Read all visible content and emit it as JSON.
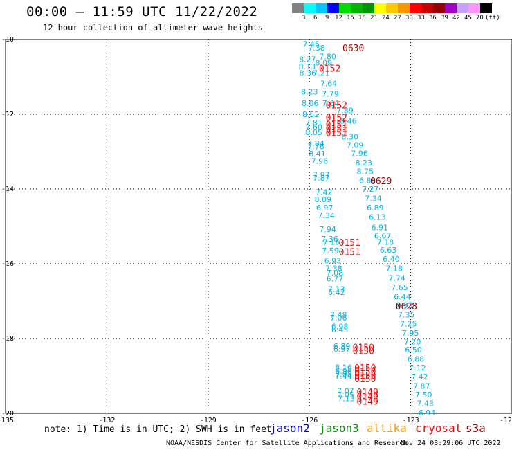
{
  "header": {
    "title": "00:00 — 11:59 UTC 11/22/2022",
    "subtitle": "12 hour collection of altimeter wave heights"
  },
  "colorbar": {
    "colors": [
      "#808080",
      "#00ffff",
      "#00c8ff",
      "#0000ff",
      "#00dc00",
      "#00b400",
      "#009600",
      "#ffff00",
      "#ffc800",
      "#ff9600",
      "#ff0000",
      "#c80000",
      "#960000",
      "#a000c8",
      "#c8a0ff",
      "#ff96ff",
      "#000000"
    ],
    "labels": [
      "3",
      "6",
      "9",
      "12",
      "15",
      "18",
      "21",
      "24",
      "27",
      "30",
      "33",
      "36",
      "39",
      "42",
      "45",
      "70"
    ],
    "unit": "(ft)"
  },
  "axes": {
    "x_ticks": [
      "-135",
      "-132",
      "-129",
      "-126",
      "-123",
      "-12"
    ],
    "y_ticks": [
      "-10",
      "-12",
      "-14",
      "-16",
      "-18",
      "-20"
    ]
  },
  "observations": [
    {
      "text": "7.45",
      "lon": -126.2,
      "lat": -10.12,
      "color": "#00b4e6"
    },
    {
      "text": "7.38",
      "lon": -126.04,
      "lat": -10.22,
      "color": "#00b4e6"
    },
    {
      "text": "7.80",
      "lon": -125.71,
      "lat": -10.45,
      "color": "#00b4e6"
    },
    {
      "text": "8.27",
      "lon": -126.31,
      "lat": -10.53,
      "color": "#00b4e6"
    },
    {
      "text": "8.09",
      "lon": -125.83,
      "lat": -10.62,
      "color": "#00b4e6"
    },
    {
      "text": "8.13",
      "lon": -126.32,
      "lat": -10.72,
      "color": "#00b4e6"
    },
    {
      "text": "7.21",
      "lon": -125.9,
      "lat": -10.9,
      "color": "#00b4e6"
    },
    {
      "text": "8.36",
      "lon": -126.3,
      "lat": -10.9,
      "color": "#00b4e6"
    },
    {
      "text": "7.64",
      "lon": -125.68,
      "lat": -11.18,
      "color": "#00b4e6"
    },
    {
      "text": "8.23",
      "lon": -126.25,
      "lat": -11.4,
      "color": "#00b4e6"
    },
    {
      "text": "7.79",
      "lon": -125.63,
      "lat": -11.45,
      "color": "#00b4e6"
    },
    {
      "text": "8.06",
      "lon": -126.23,
      "lat": -11.7,
      "color": "#00b4e6"
    },
    {
      "text": "7.64",
      "lon": -125.62,
      "lat": -11.7,
      "color": "#00b4e6"
    },
    {
      "text": "7.89",
      "lon": -125.2,
      "lat": -11.9,
      "color": "#00b4e6"
    },
    {
      "text": "8.52",
      "lon": -126.21,
      "lat": -12.0,
      "color": "#00b4e6"
    },
    {
      "text": "7.81",
      "lon": -126.12,
      "lat": -12.22,
      "color": "#00b4e6"
    },
    {
      "text": "8.46",
      "lon": -125.1,
      "lat": -12.18,
      "color": "#00b4e6"
    },
    {
      "text": "7.60",
      "lon": -126.12,
      "lat": -12.34,
      "color": "#00b4e6"
    },
    {
      "text": "8.05",
      "lon": -126.12,
      "lat": -12.48,
      "color": "#00b4e6"
    },
    {
      "text": "8.30",
      "lon": -125.05,
      "lat": -12.6,
      "color": "#00b4e6"
    },
    {
      "text": "7.84",
      "lon": -126.06,
      "lat": -12.78,
      "color": "#00b4e6"
    },
    {
      "text": "7.09",
      "lon": -124.9,
      "lat": -12.82,
      "color": "#00b4e6"
    },
    {
      "text": "7.76",
      "lon": -126.06,
      "lat": -12.86,
      "color": "#00b4e6"
    },
    {
      "text": "7.96",
      "lon": -124.77,
      "lat": -13.05,
      "color": "#00b4e6"
    },
    {
      "text": "8.41",
      "lon": -126.02,
      "lat": -13.06,
      "color": "#00b4e6"
    },
    {
      "text": "7.96",
      "lon": -125.95,
      "lat": -13.25,
      "color": "#00b4e6"
    },
    {
      "text": "8.23",
      "lon": -124.64,
      "lat": -13.3,
      "color": "#00b4e6"
    },
    {
      "text": "8.75",
      "lon": -124.6,
      "lat": -13.53,
      "color": "#00b4e6"
    },
    {
      "text": "7.97",
      "lon": -125.9,
      "lat": -13.62,
      "color": "#00b4e6"
    },
    {
      "text": "7.87",
      "lon": -125.9,
      "lat": -13.7,
      "color": "#00b4e6"
    },
    {
      "text": "6.88",
      "lon": -124.53,
      "lat": -13.77,
      "color": "#00b4e6"
    },
    {
      "text": "7.27",
      "lon": -124.45,
      "lat": -14.0,
      "color": "#00b4e6"
    },
    {
      "text": "7.42",
      "lon": -125.82,
      "lat": -14.08,
      "color": "#00b4e6"
    },
    {
      "text": "7.34",
      "lon": -124.36,
      "lat": -14.25,
      "color": "#00b4e6"
    },
    {
      "text": "8.09",
      "lon": -125.85,
      "lat": -14.28,
      "color": "#00b4e6"
    },
    {
      "text": "6.97",
      "lon": -125.8,
      "lat": -14.5,
      "color": "#00b4e6"
    },
    {
      "text": "6.89",
      "lon": -124.3,
      "lat": -14.5,
      "color": "#00b4e6"
    },
    {
      "text": "7.34",
      "lon": -125.75,
      "lat": -14.7,
      "color": "#00b4e6"
    },
    {
      "text": "6.13",
      "lon": -124.24,
      "lat": -14.75,
      "color": "#00b4e6"
    },
    {
      "text": "6.91",
      "lon": -124.17,
      "lat": -15.03,
      "color": "#00b4e6"
    },
    {
      "text": "7.94",
      "lon": -125.71,
      "lat": -15.07,
      "color": "#00b4e6"
    },
    {
      "text": "6.67",
      "lon": -124.08,
      "lat": -15.25,
      "color": "#00b4e6"
    },
    {
      "text": "7.36",
      "lon": -125.65,
      "lat": -15.33,
      "color": "#00b4e6"
    },
    {
      "text": "7.16",
      "lon": -125.6,
      "lat": -15.42,
      "color": "#00b4e6"
    },
    {
      "text": "7.18",
      "lon": -124.0,
      "lat": -15.42,
      "color": "#00b4e6"
    },
    {
      "text": "7.59",
      "lon": -125.63,
      "lat": -15.65,
      "color": "#00b4e6"
    },
    {
      "text": "6.63",
      "lon": -123.92,
      "lat": -15.63,
      "color": "#00b4e6"
    },
    {
      "text": "6.40",
      "lon": -123.83,
      "lat": -15.87,
      "color": "#00b4e6"
    },
    {
      "text": "6.93",
      "lon": -125.56,
      "lat": -15.92,
      "color": "#00b4e6"
    },
    {
      "text": "7.18",
      "lon": -123.74,
      "lat": -16.12,
      "color": "#00b4e6"
    },
    {
      "text": "7.38",
      "lon": -125.53,
      "lat": -16.12,
      "color": "#00b4e6"
    },
    {
      "text": "7.08",
      "lon": -125.5,
      "lat": -16.24,
      "color": "#00b4e6"
    },
    {
      "text": "6.77",
      "lon": -125.5,
      "lat": -16.4,
      "color": "#00b4e6"
    },
    {
      "text": "7.74",
      "lon": -123.66,
      "lat": -16.38,
      "color": "#00b4e6"
    },
    {
      "text": "7.65",
      "lon": -123.58,
      "lat": -16.63,
      "color": "#00b4e6"
    },
    {
      "text": "7.13",
      "lon": -125.45,
      "lat": -16.68,
      "color": "#00b4e6"
    },
    {
      "text": "6.42",
      "lon": -125.45,
      "lat": -16.76,
      "color": "#00b4e6"
    },
    {
      "text": "6.44",
      "lon": -123.5,
      "lat": -16.88,
      "color": "#00b4e6"
    },
    {
      "text": "6.92",
      "lon": -123.44,
      "lat": -17.1,
      "color": "#00b4e6"
    },
    {
      "text": "7.24",
      "lon": -123.42,
      "lat": -17.15,
      "color": "#00b4e6"
    },
    {
      "text": "7.35",
      "lon": -123.38,
      "lat": -17.36,
      "color": "#00b4e6"
    },
    {
      "text": "7.48",
      "lon": -125.39,
      "lat": -17.36,
      "color": "#00b4e6"
    },
    {
      "text": "7.06",
      "lon": -125.39,
      "lat": -17.44,
      "color": "#00b4e6"
    },
    {
      "text": "7.25",
      "lon": -123.32,
      "lat": -17.6,
      "color": "#00b4e6"
    },
    {
      "text": "6.98",
      "lon": -125.35,
      "lat": -17.68,
      "color": "#00b4e6"
    },
    {
      "text": "6.45",
      "lon": -125.35,
      "lat": -17.76,
      "color": "#00b4e6"
    },
    {
      "text": "7.95",
      "lon": -123.26,
      "lat": -17.85,
      "color": "#00b4e6"
    },
    {
      "text": "7.20",
      "lon": -123.2,
      "lat": -18.08,
      "color": "#00b4e6"
    },
    {
      "text": "6.89",
      "lon": -125.29,
      "lat": -18.2,
      "color": "#00b4e6"
    },
    {
      "text": "6.97",
      "lon": -125.29,
      "lat": -18.28,
      "color": "#00b4e6"
    },
    {
      "text": "6.50",
      "lon": -123.17,
      "lat": -18.3,
      "color": "#00b4e6"
    },
    {
      "text": "6.88",
      "lon": -123.1,
      "lat": -18.55,
      "color": "#00b4e6"
    },
    {
      "text": "8.16",
      "lon": -125.24,
      "lat": -18.77,
      "color": "#00b4e6"
    },
    {
      "text": "7.12",
      "lon": -123.05,
      "lat": -18.78,
      "color": "#00b4e6"
    },
    {
      "text": "6.96",
      "lon": -125.24,
      "lat": -18.87,
      "color": "#00b4e6"
    },
    {
      "text": "7.08",
      "lon": -125.24,
      "lat": -18.94,
      "color": "#00b4e6"
    },
    {
      "text": "7.44",
      "lon": -125.24,
      "lat": -19.0,
      "color": "#00b4e6"
    },
    {
      "text": "7.42",
      "lon": -122.99,
      "lat": -19.02,
      "color": "#00b4e6"
    },
    {
      "text": "7.87",
      "lon": -122.93,
      "lat": -19.27,
      "color": "#00b4e6"
    },
    {
      "text": "7.07",
      "lon": -125.18,
      "lat": -19.4,
      "color": "#00b4e6"
    },
    {
      "text": "7.50",
      "lon": -122.87,
      "lat": -19.5,
      "color": "#00b4e6"
    },
    {
      "text": "7.05",
      "lon": -125.18,
      "lat": -19.5,
      "color": "#00b4e6"
    },
    {
      "text": "7.13",
      "lon": -125.16,
      "lat": -19.6,
      "color": "#00b4e6"
    },
    {
      "text": "7.43",
      "lon": -122.82,
      "lat": -19.73,
      "color": "#00b4e6"
    },
    {
      "text": "6.94",
      "lon": -122.77,
      "lat": -19.98,
      "color": "#00b4e6"
    }
  ],
  "times": [
    {
      "text": "0630",
      "lon": -125.02,
      "lat": -10.22,
      "color": "#960000"
    },
    {
      "text": "0152",
      "lon": -125.72,
      "lat": -10.77,
      "color": "#ff0000"
    },
    {
      "text": "0152",
      "lon": -125.52,
      "lat": -11.75,
      "color": "#ff0000"
    },
    {
      "text": "0152",
      "lon": -125.52,
      "lat": -12.08,
      "color": "#ff0000"
    },
    {
      "text": "0151",
      "lon": -125.52,
      "lat": -12.27,
      "color": "#ff0000"
    },
    {
      "text": "0151",
      "lon": -125.52,
      "lat": -12.38,
      "color": "#ff0000"
    },
    {
      "text": "0151",
      "lon": -125.52,
      "lat": -12.49,
      "color": "#ff0000"
    },
    {
      "text": "0629",
      "lon": -124.2,
      "lat": -13.78,
      "color": "#960000"
    },
    {
      "text": "0151",
      "lon": -125.13,
      "lat": -15.43,
      "color": "#ff0000"
    },
    {
      "text": "0151",
      "lon": -125.13,
      "lat": -15.68,
      "color": "#ff0000"
    },
    {
      "text": "0628",
      "lon": -123.45,
      "lat": -17.13,
      "color": "#960000"
    },
    {
      "text": "0150",
      "lon": -124.72,
      "lat": -18.23,
      "color": "#ff0000"
    },
    {
      "text": "0150",
      "lon": -124.72,
      "lat": -18.32,
      "color": "#ff0000"
    },
    {
      "text": "0150",
      "lon": -124.67,
      "lat": -18.78,
      "color": "#ff0000"
    },
    {
      "text": "0150",
      "lon": -124.67,
      "lat": -18.88,
      "color": "#ff0000"
    },
    {
      "text": "0150",
      "lon": -124.67,
      "lat": -18.98,
      "color": "#ff0000"
    },
    {
      "text": "0150",
      "lon": -124.67,
      "lat": -19.07,
      "color": "#ff0000"
    },
    {
      "text": "0149",
      "lon": -124.6,
      "lat": -19.43,
      "color": "#ff0000"
    },
    {
      "text": "0149",
      "lon": -124.6,
      "lat": -19.55,
      "color": "#ff0000"
    },
    {
      "text": "0149",
      "lon": -124.6,
      "lat": -19.68,
      "color": "#ff0000"
    }
  ],
  "footer": {
    "note": "note: 1) Time is in UTC; 2) SWH is in feet",
    "legend": [
      {
        "label": "jason2",
        "color": "#0000ff"
      },
      {
        "label": "jason3",
        "color": "#009600"
      },
      {
        "label": "altika",
        "color": "#ff9600"
      },
      {
        "label": "cryosat",
        "color": "#ff0000"
      },
      {
        "label": "s3a",
        "color": "#960000"
      }
    ],
    "credit": "NOAA/NESDIS Center for Satellite Applications and Research",
    "timestamp": "Nov 24 08:29:06 UTC 2022"
  }
}
